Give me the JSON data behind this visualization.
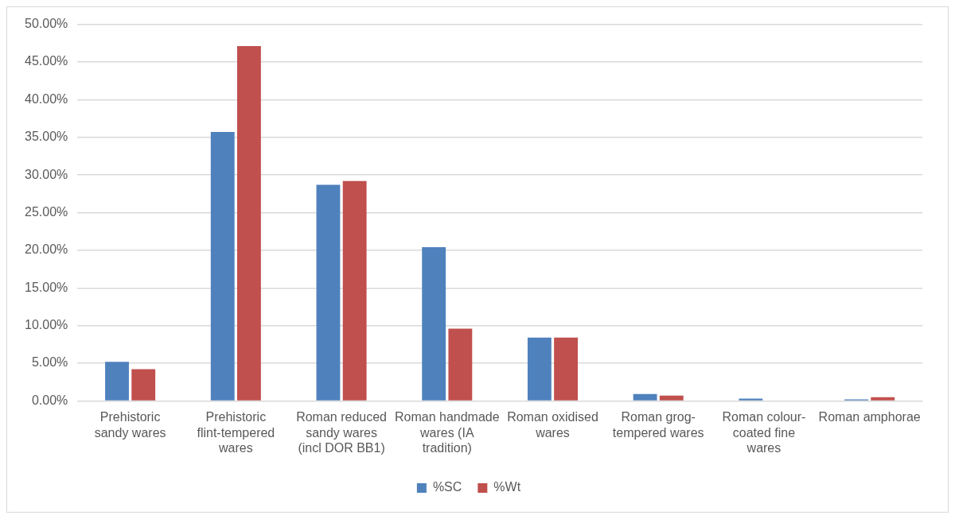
{
  "chart_data": {
    "type": "bar",
    "categories": [
      "Prehistoric sandy wares",
      "Prehistoric flint-tempered wares",
      "Roman reduced sandy wares (incl DOR BB1)",
      "Roman handmade wares (IA tradition)",
      "Roman oxidised wares",
      "Roman grog-tempered wares",
      "Roman colour-coated fine wares",
      "Roman amphorae"
    ],
    "series": [
      {
        "name": "%SC",
        "color": "#4f81bd",
        "values": [
          5.2,
          35.7,
          28.7,
          20.4,
          8.4,
          0.9,
          0.3,
          0.2
        ]
      },
      {
        "name": "%Wt",
        "color": "#c0504d",
        "values": [
          4.2,
          47.1,
          29.2,
          9.6,
          8.4,
          0.7,
          0,
          0.5
        ]
      }
    ],
    "ylim": [
      0,
      50
    ],
    "yticks": [
      {
        "value": 0,
        "label": "0.00%"
      },
      {
        "value": 5,
        "label": "5.00%"
      },
      {
        "value": 10,
        "label": "10.00%"
      },
      {
        "value": 15,
        "label": "15.00%"
      },
      {
        "value": 20,
        "label": "20.00%"
      },
      {
        "value": 25,
        "label": "25.00%"
      },
      {
        "value": 30,
        "label": "30.00%"
      },
      {
        "value": 35,
        "label": "35.00%"
      },
      {
        "value": 40,
        "label": "40.00%"
      },
      {
        "value": 45,
        "label": "45.00%"
      },
      {
        "value": 50,
        "label": "50.00%"
      }
    ],
    "grid": "y",
    "legend": "bottom"
  }
}
